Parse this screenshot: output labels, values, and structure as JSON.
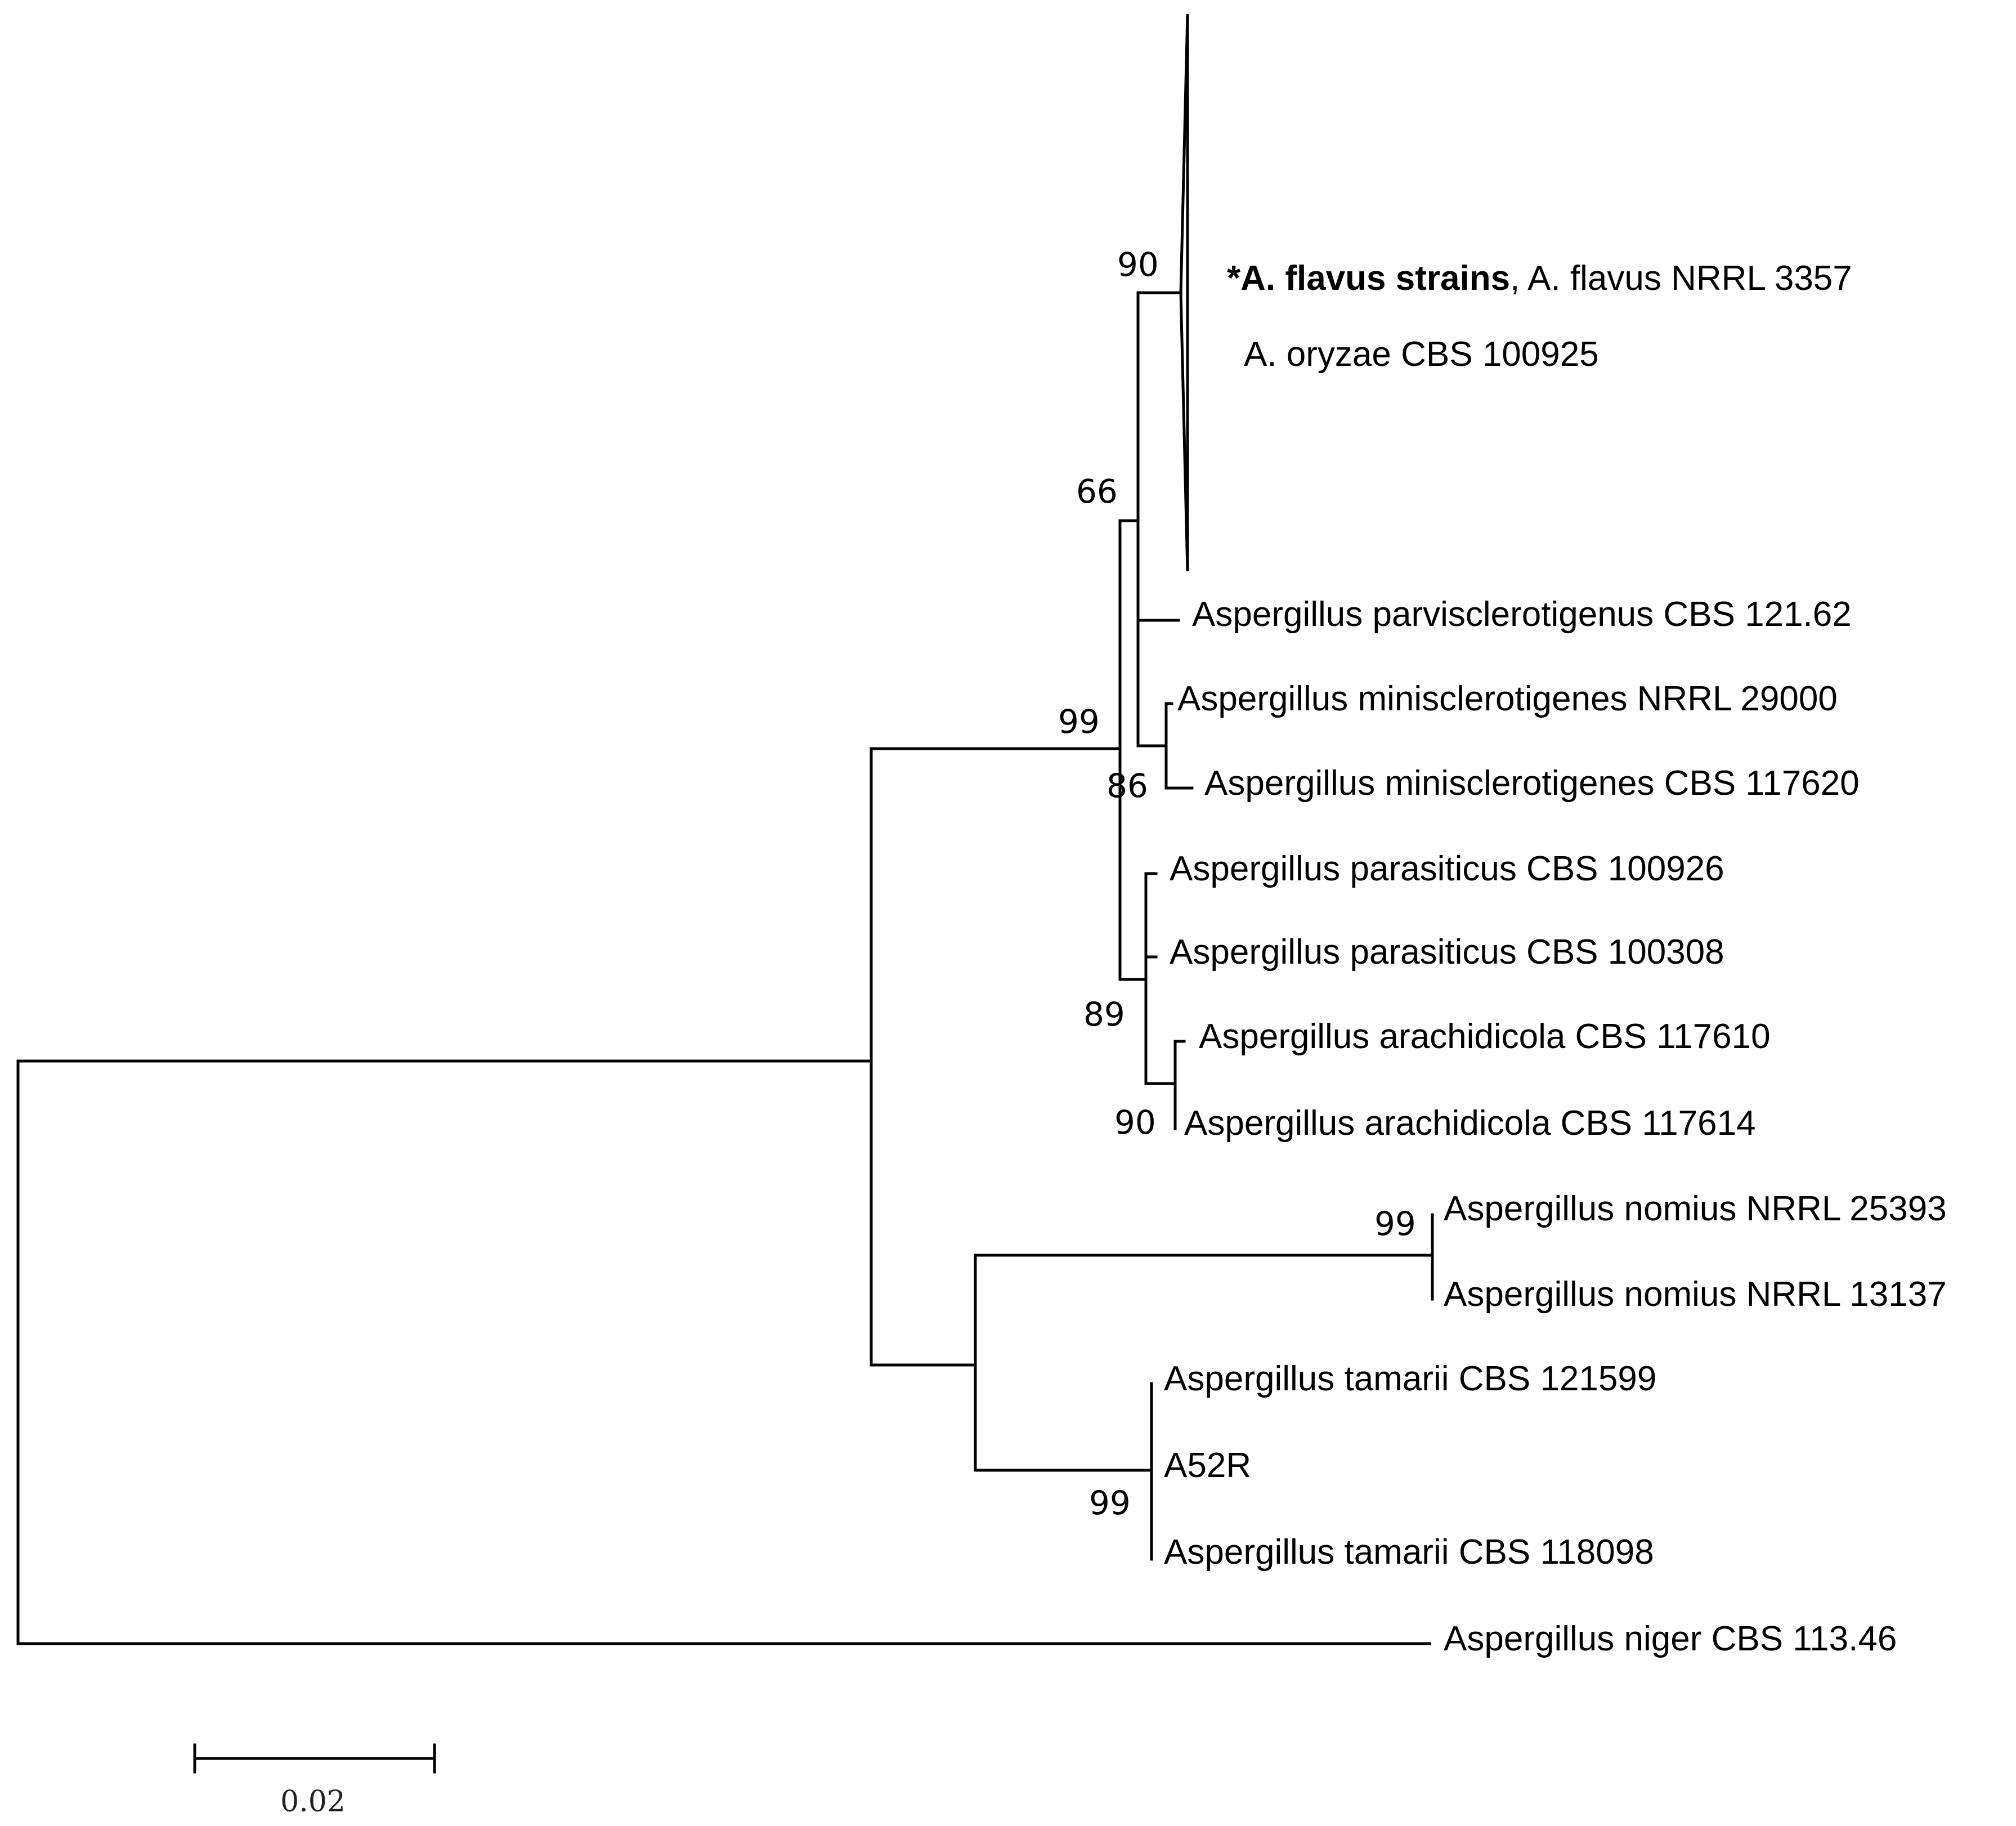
{
  "tree": {
    "collapsed_clade": {
      "label_bold": "*A. flavus strains",
      "label_rest": ", A. flavus NRRL 3357",
      "label_line2": "A. oryzae CBS 100925",
      "bootstrap": "90"
    },
    "taxa": {
      "parvisclerotigenus": "Aspergillus parvisclerotigenus CBS 121.62",
      "minisclerotigenes_1": "Aspergillus minisclerotigenes NRRL 29000",
      "minisclerotigenes_2": "Aspergillus minisclerotigenes CBS 117620",
      "parasiticus_1": "Aspergillus parasiticus CBS 100926",
      "parasiticus_2": "Aspergillus parasiticus CBS 100308",
      "arachidicola_1": "Aspergillus arachidicola CBS 117610",
      "arachidicola_2": "Aspergillus arachidicola CBS 117614",
      "nomius_1": "Aspergillus nomius NRRL 25393",
      "nomius_2": "Aspergillus nomius NRRL 13137",
      "tamarii_1": "Aspergillus tamarii CBS 121599",
      "a52r": "A52R",
      "tamarii_2": "Aspergillus tamarii CBS 118098",
      "niger": "Aspergillus niger CBS 113.46"
    },
    "bootstrap": {
      "flavus_group": "66",
      "section_flavi_main": "99",
      "minisclerotigenes": "86",
      "parasiticus_group": "89",
      "arachidicola": "90",
      "nomius": "99",
      "tamarii": "99"
    },
    "scale_bar": {
      "label": "0.02"
    }
  }
}
